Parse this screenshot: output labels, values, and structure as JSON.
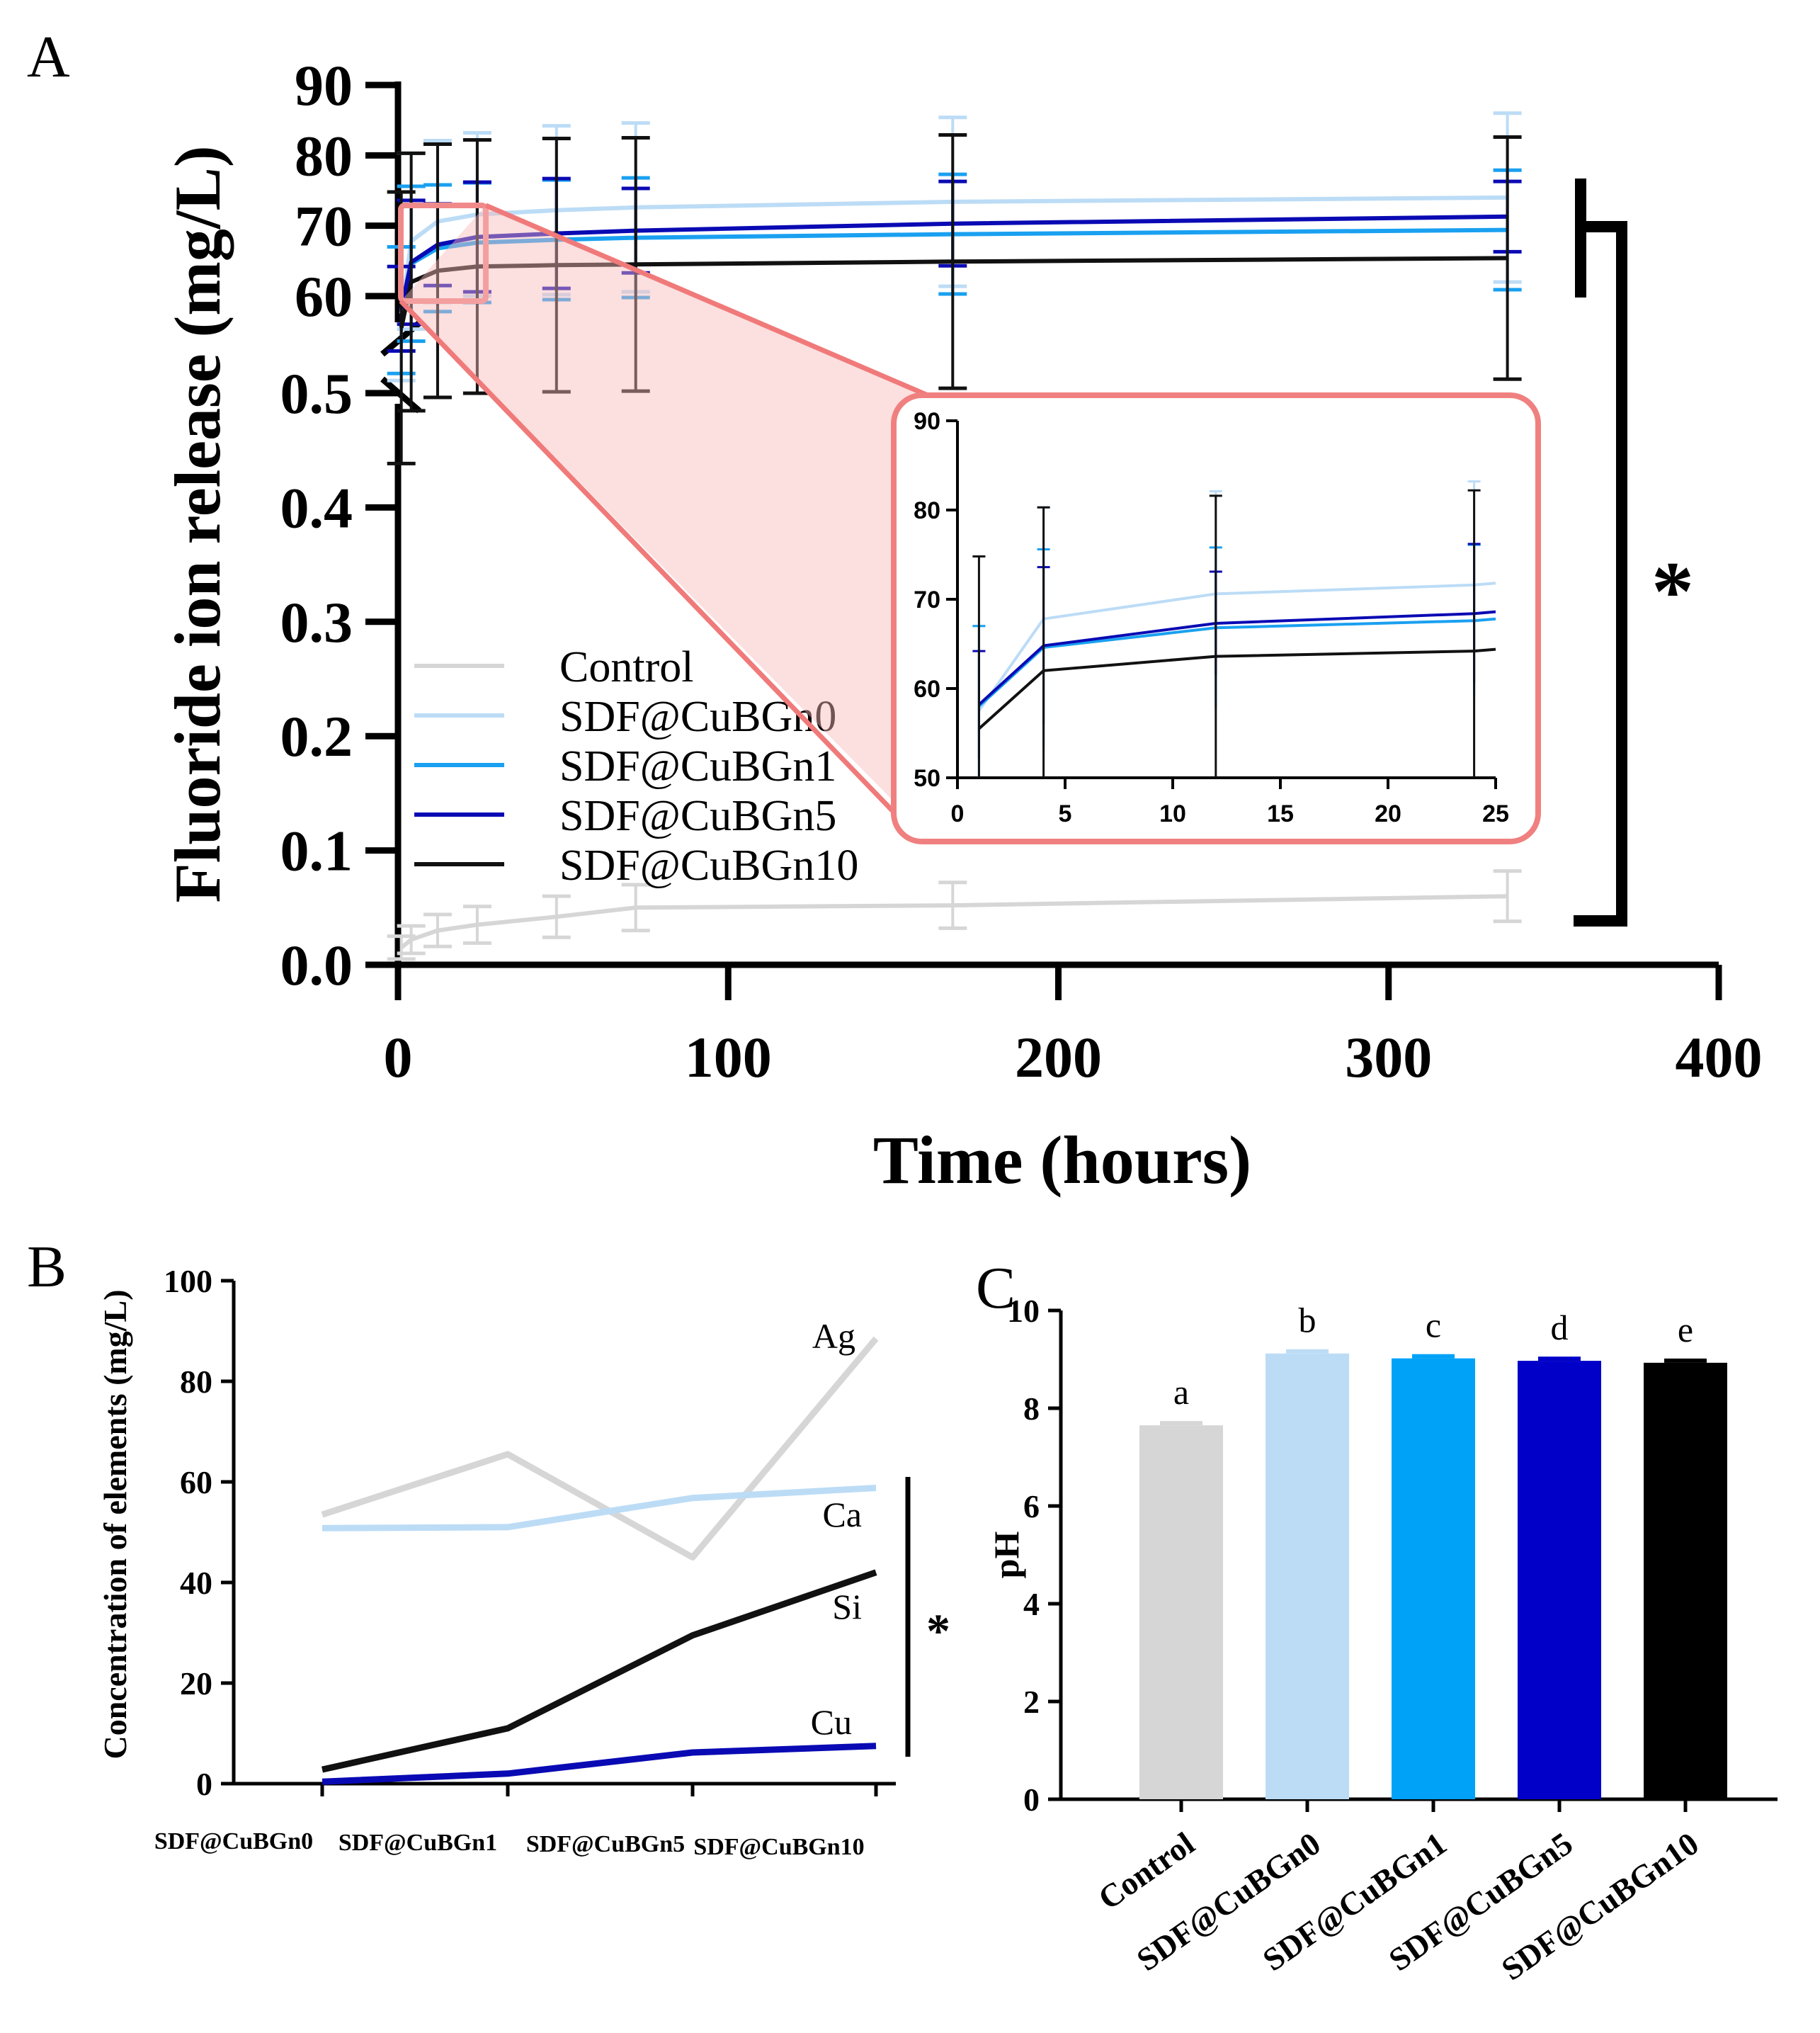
{
  "chart_data": [
    {
      "panel": "A",
      "type": "line",
      "xlabel": "Time (hours)",
      "ylabel": "Fluoride ion release (mg/L)",
      "x_ticks": [
        "0",
        "100",
        "200",
        "300",
        "400"
      ],
      "y_ticks_lower": [
        "0.0",
        "0.1",
        "0.2",
        "0.3",
        "0.4",
        "0.5"
      ],
      "y_ticks_upper": [
        "60",
        "70",
        "80",
        "90"
      ],
      "xlim": [
        0,
        400
      ],
      "ylim_lower": [
        0,
        0.5
      ],
      "ylim_upper": [
        60,
        90
      ],
      "x": [
        1,
        4,
        12,
        24,
        48,
        72,
        168,
        336
      ],
      "legend": [
        "Control",
        "SDF@CuBGn0",
        "SDF@CuBGn1",
        "SDF@CuBGn5",
        "SDF@CuBGn10"
      ],
      "significance": "*",
      "series": [
        {
          "name": "Control",
          "color": "#d6d6d6",
          "axis": "lower",
          "values": [
            0.015,
            0.022,
            0.03,
            0.035,
            0.042,
            0.05,
            0.052,
            0.06
          ],
          "err": [
            0.01,
            0.012,
            0.014,
            0.016,
            0.018,
            0.02,
            0.02,
            0.022
          ]
        },
        {
          "name": "SDF@CuBGn0",
          "color": "#bcdcf6",
          "axis": "upper",
          "values": [
            57.5,
            67.8,
            70.6,
            71.6,
            72.2,
            72.6,
            73.4,
            74.0
          ],
          "err": [
            9.5,
            12.5,
            11.5,
            11.6,
            12.0,
            12.0,
            12.0,
            12.0
          ]
        },
        {
          "name": "SDF@CuBGn1",
          "color": "#1aa0f0",
          "axis": "upper",
          "values": [
            58.0,
            64.6,
            66.8,
            67.6,
            68.0,
            68.3,
            68.8,
            69.4
          ],
          "err": [
            9.0,
            11.0,
            9.0,
            8.5,
            8.5,
            8.5,
            8.5,
            8.5
          ]
        },
        {
          "name": "SDF@CuBGn5",
          "color": "#0a0ab4",
          "axis": "upper",
          "values": [
            58.2,
            64.8,
            67.3,
            68.4,
            68.9,
            69.3,
            70.3,
            71.3
          ],
          "err": [
            6.0,
            8.8,
            5.8,
            7.8,
            7.8,
            6.0,
            6.0,
            5.0
          ]
        },
        {
          "name": "SDF@CuBGn10",
          "color": "#111111",
          "axis": "upper",
          "values": [
            55.5,
            62.0,
            63.6,
            64.2,
            64.4,
            64.5,
            64.9,
            65.4
          ],
          "err": [
            19.3,
            18.3,
            18.0,
            18.0,
            18.0,
            18.0,
            18.0,
            17.2
          ]
        }
      ],
      "inset": {
        "xlim": [
          0,
          25
        ],
        "ylim": [
          50,
          90
        ],
        "x_ticks": [
          "0",
          "5",
          "10",
          "15",
          "20",
          "25"
        ],
        "y_ticks": [
          "50",
          "60",
          "70",
          "80",
          "90"
        ],
        "x": [
          1,
          4,
          12,
          24,
          25
        ]
      }
    },
    {
      "panel": "B",
      "type": "line",
      "ylabel": "Concentration of elements (mg/L)",
      "categories": [
        "SDF@CuBGn0",
        "SDF@CuBGn1",
        "SDF@CuBGn5",
        "SDF@CuBGn10"
      ],
      "ylim": [
        0,
        100
      ],
      "y_ticks": [
        "0",
        "20",
        "40",
        "60",
        "80",
        "100"
      ],
      "significance": "*",
      "series": [
        {
          "name": "Ag",
          "color": "#d6d6d6",
          "values": [
            53.5,
            65.5,
            45.0,
            88.5
          ]
        },
        {
          "name": "Ca",
          "color": "#bcdcf6",
          "values": [
            50.8,
            51.0,
            56.8,
            58.8
          ]
        },
        {
          "name": "Si",
          "color": "#111111",
          "values": [
            2.8,
            11.0,
            29.5,
            42.0
          ]
        },
        {
          "name": "Cu",
          "color": "#0a0ab4",
          "values": [
            0.4,
            2.0,
            6.2,
            7.5
          ]
        }
      ]
    },
    {
      "panel": "C",
      "type": "bar",
      "ylabel": "pH",
      "categories": [
        "Control",
        "SDF@CuBGn0",
        "SDF@CuBGn1",
        "SDF@CuBGn5",
        "SDF@CuBGn10"
      ],
      "values": [
        7.65,
        9.12,
        9.02,
        8.97,
        8.93
      ],
      "letters": [
        "a",
        "b",
        "c",
        "d",
        "e"
      ],
      "colors": [
        "#d6d6d6",
        "#bcdcf6",
        "#00a2f8",
        "#0000c8",
        "#000000"
      ],
      "ylim": [
        0,
        10
      ],
      "y_ticks": [
        "0",
        "2",
        "4",
        "6",
        "8",
        "10"
      ]
    }
  ],
  "panels": {
    "a": "A",
    "b": "B",
    "c": "C"
  }
}
